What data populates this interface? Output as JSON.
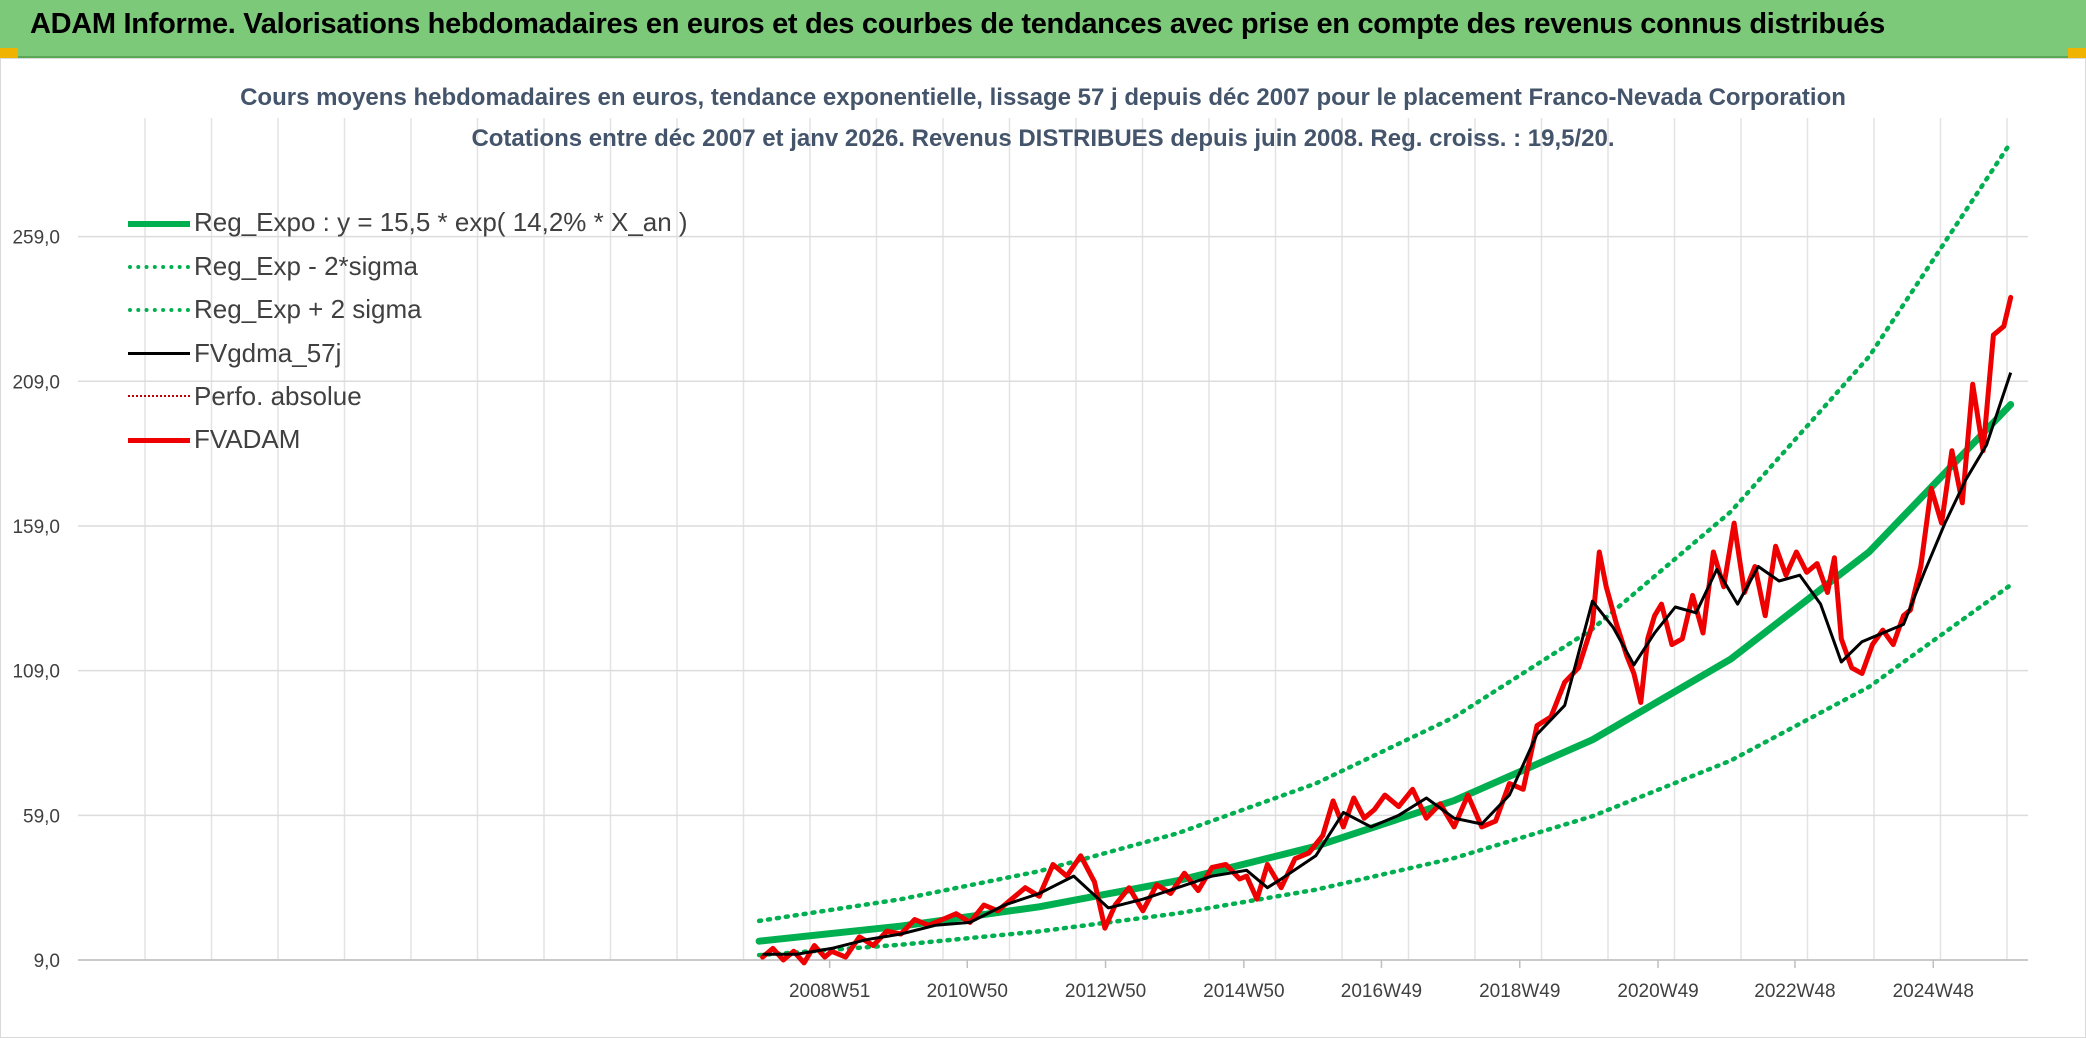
{
  "header": {
    "title": "ADAM Informe. Valorisations hebdomadaires en euros et des courbes de tendances avec prise en compte des revenus connus distribués"
  },
  "chart_data": {
    "type": "line",
    "title": "Cours moyens hebdomadaires en euros, tendance exponentielle, lissage 57 j depuis déc 2007 pour le placement Franco-Nevada Corporation",
    "subtitle": "Cotations entre déc 2007 et janv 2026. Revenus DISTRIBUES depuis juin 2008. Reg. croiss. : 19,5/20.",
    "xlabel": "",
    "ylabel": "",
    "y_ticks": [
      "9,0",
      "59,0",
      "109,0",
      "159,0",
      "209,0",
      "259,0"
    ],
    "ylim": [
      9,
      300
    ],
    "x_ticks": [
      "2008W51",
      "2010W50",
      "2012W50",
      "2014W50",
      "2016W49",
      "2018W49",
      "2020W49",
      "2022W48",
      "2024W48"
    ],
    "x_tick_years": [
      2008.97,
      2010.96,
      2012.96,
      2014.96,
      2016.95,
      2018.95,
      2020.95,
      2022.93,
      2024.93
    ],
    "xlim": [
      1998.1,
      2026.3
    ],
    "grid": true,
    "legend_position": "top-left",
    "regression": {
      "a": 15.5,
      "rate": 0.142,
      "x0": 2007.95,
      "sigma_factor": 1.45
    },
    "series": [
      {
        "name": "Reg_Expo : y = 15,5 * exp( 14,2% *  X_an )",
        "color": "#00b050",
        "style": "solid-thick",
        "x": [
          2007.95,
          2010,
          2012,
          2014,
          2016,
          2018,
          2020,
          2022,
          2024,
          2026.05
        ],
        "values": [
          15.5,
          20.7,
          27.4,
          36.4,
          48.3,
          64.1,
          85.1,
          113,
          150,
          201
        ]
      },
      {
        "name": "Reg_Exp - 2*sigma",
        "color": "#00b050",
        "style": "dotted",
        "x": [
          2007.95,
          2010,
          2012,
          2014,
          2016,
          2018,
          2020,
          2022,
          2024,
          2026.05
        ],
        "values": [
          10.7,
          14.3,
          18.9,
          25.1,
          33.3,
          44.2,
          58.7,
          77.9,
          103.4,
          138.6
        ]
      },
      {
        "name": "Reg_Exp + 2 sigma",
        "color": "#00b050",
        "style": "dotted",
        "x": [
          2007.95,
          2010,
          2012,
          2014,
          2016,
          2018,
          2020,
          2022,
          2024,
          2026.05
        ],
        "values": [
          22.5,
          30,
          39.7,
          52.8,
          70,
          92.9,
          123.4,
          163.9,
          217.5,
          291.5
        ]
      },
      {
        "name": "FVgdma_57j",
        "color": "#000000",
        "style": "solid",
        "x": [
          2008.0,
          2008.5,
          2009.0,
          2009.5,
          2010.0,
          2010.5,
          2011.0,
          2011.5,
          2012.0,
          2012.5,
          2013.0,
          2013.5,
          2014.0,
          2014.5,
          2015.0,
          2015.3,
          2015.5,
          2016.0,
          2016.4,
          2016.8,
          2017.2,
          2017.6,
          2018.0,
          2018.4,
          2018.8,
          2019.2,
          2019.6,
          2020.0,
          2020.3,
          2020.6,
          2020.9,
          2021.2,
          2021.5,
          2021.8,
          2022.1,
          2022.4,
          2022.7,
          2023.0,
          2023.3,
          2023.6,
          2023.9,
          2024.2,
          2024.5,
          2024.8,
          2025.1,
          2025.4,
          2025.7,
          2026.05
        ],
        "values": [
          11,
          11,
          13,
          16,
          18,
          21,
          22,
          28,
          32,
          38,
          27,
          30,
          34,
          38,
          40,
          34,
          37,
          45,
          60,
          55,
          59,
          65,
          58,
          56,
          66,
          87,
          97,
          133,
          124,
          111,
          122,
          131,
          129,
          144,
          132,
          145,
          140,
          142,
          132,
          112,
          119,
          122,
          125,
          143,
          160,
          175,
          187,
          212
        ]
      },
      {
        "name": "Perfo. absolue",
        "color": "#c00000",
        "style": "dotted-thin",
        "x": [],
        "values": []
      },
      {
        "name": "FVADAM",
        "color": "#ee0000",
        "style": "solid-thick",
        "x": [
          2008.0,
          2008.15,
          2008.3,
          2008.45,
          2008.6,
          2008.75,
          2008.9,
          2009.0,
          2009.2,
          2009.4,
          2009.6,
          2009.8,
          2010.0,
          2010.2,
          2010.4,
          2010.6,
          2010.8,
          2011.0,
          2011.2,
          2011.4,
          2011.6,
          2011.8,
          2012.0,
          2012.2,
          2012.4,
          2012.6,
          2012.8,
          2012.95,
          2013.1,
          2013.3,
          2013.5,
          2013.7,
          2013.9,
          2014.1,
          2014.3,
          2014.5,
          2014.7,
          2014.9,
          2015.0,
          2015.15,
          2015.3,
          2015.5,
          2015.7,
          2015.9,
          2016.1,
          2016.25,
          2016.4,
          2016.55,
          2016.7,
          2016.85,
          2017.0,
          2017.2,
          2017.4,
          2017.6,
          2017.8,
          2018.0,
          2018.2,
          2018.4,
          2018.6,
          2018.8,
          2019.0,
          2019.2,
          2019.4,
          2019.6,
          2019.8,
          2020.0,
          2020.1,
          2020.2,
          2020.35,
          2020.5,
          2020.6,
          2020.7,
          2020.8,
          2020.9,
          2021.0,
          2021.15,
          2021.3,
          2021.45,
          2021.6,
          2021.75,
          2021.9,
          2022.05,
          2022.2,
          2022.35,
          2022.5,
          2022.65,
          2022.8,
          2022.95,
          2023.1,
          2023.25,
          2023.4,
          2023.5,
          2023.6,
          2023.75,
          2023.9,
          2024.05,
          2024.2,
          2024.35,
          2024.5,
          2024.6,
          2024.75,
          2024.9,
          2025.05,
          2025.2,
          2025.35,
          2025.5,
          2025.65,
          2025.8,
          2025.95,
          2026.05
        ],
        "values": [
          10,
          13,
          9,
          12,
          8,
          14,
          10,
          12,
          10,
          17,
          14,
          19,
          18,
          23,
          21,
          23,
          25,
          22,
          28,
          26,
          30,
          34,
          31,
          42,
          38,
          45,
          36,
          20,
          28,
          34,
          26,
          35,
          32,
          39,
          33,
          41,
          42,
          37,
          38,
          30,
          42,
          34,
          44,
          46,
          52,
          64,
          55,
          65,
          58,
          61,
          66,
          62,
          68,
          58,
          63,
          55,
          66,
          55,
          57,
          70,
          68,
          90,
          93,
          105,
          110,
          125,
          150,
          138,
          125,
          114,
          108,
          98,
          120,
          128,
          132,
          118,
          120,
          135,
          122,
          150,
          138,
          160,
          136,
          145,
          128,
          152,
          142,
          150,
          143,
          146,
          136,
          148,
          120,
          110,
          108,
          118,
          123,
          118,
          128,
          130,
          145,
          172,
          160,
          185,
          167,
          208,
          185,
          225,
          228,
          238
        ]
      }
    ]
  }
}
